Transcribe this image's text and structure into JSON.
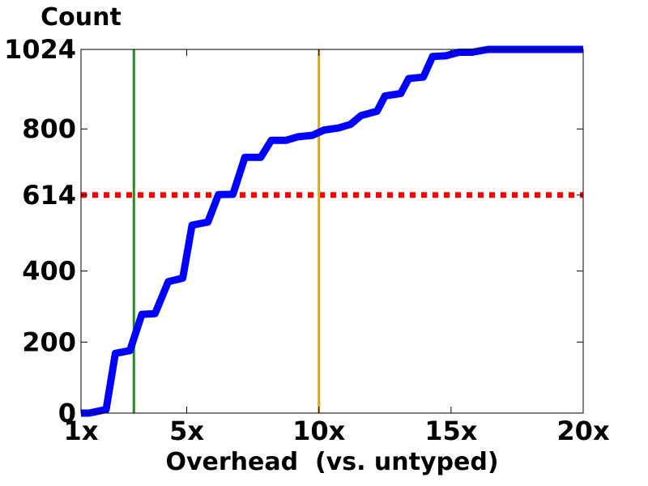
{
  "chart_data": {
    "type": "line",
    "title": "",
    "ylabel": "Count",
    "xlabel": "Overhead  (vs. untyped)",
    "xlim": [
      1,
      20
    ],
    "ylim": [
      0,
      1024
    ],
    "x_ticks": [
      {
        "value": 1,
        "label": "1x"
      },
      {
        "value": 5,
        "label": "5x"
      },
      {
        "value": 10,
        "label": "10x"
      },
      {
        "value": 15,
        "label": "15x"
      },
      {
        "value": 20,
        "label": "20x"
      }
    ],
    "y_ticks": [
      {
        "value": 0,
        "label": "0"
      },
      {
        "value": 200,
        "label": "200"
      },
      {
        "value": 400,
        "label": "400"
      },
      {
        "value": 614,
        "label": "614"
      },
      {
        "value": 800,
        "label": "800"
      },
      {
        "value": 1024,
        "label": "1024"
      }
    ],
    "grid": false,
    "series": [
      {
        "color": "#0000ff",
        "style": "solid",
        "points": [
          [
            1.0,
            0
          ],
          [
            1.3,
            0
          ],
          [
            1.5,
            3
          ],
          [
            1.95,
            10
          ],
          [
            2.3,
            168
          ],
          [
            2.85,
            176
          ],
          [
            3.3,
            278
          ],
          [
            3.8,
            280
          ],
          [
            4.3,
            370
          ],
          [
            4.85,
            380
          ],
          [
            5.2,
            529
          ],
          [
            5.8,
            538
          ],
          [
            6.2,
            615
          ],
          [
            6.75,
            616
          ],
          [
            7.2,
            720
          ],
          [
            7.8,
            720
          ],
          [
            8.2,
            768
          ],
          [
            8.75,
            768
          ],
          [
            9.2,
            778
          ],
          [
            9.75,
            782
          ],
          [
            10.2,
            797
          ],
          [
            10.75,
            803
          ],
          [
            11.2,
            813
          ],
          [
            11.6,
            838
          ],
          [
            12.2,
            850
          ],
          [
            12.5,
            893
          ],
          [
            13.1,
            900
          ],
          [
            13.4,
            942
          ],
          [
            13.95,
            946
          ],
          [
            14.3,
            1004
          ],
          [
            14.8,
            1006
          ],
          [
            15.3,
            1016
          ],
          [
            15.8,
            1016
          ],
          [
            16.4,
            1024
          ],
          [
            20.0,
            1024
          ]
        ]
      }
    ],
    "reference_lines": [
      {
        "orientation": "horizontal",
        "value": 614,
        "color": "#ff0000",
        "style": "dotted"
      },
      {
        "orientation": "vertical",
        "value": 3,
        "color": "#228b22",
        "style": "solid"
      },
      {
        "orientation": "vertical",
        "value": 10,
        "color": "#daa520",
        "style": "solid"
      }
    ]
  }
}
